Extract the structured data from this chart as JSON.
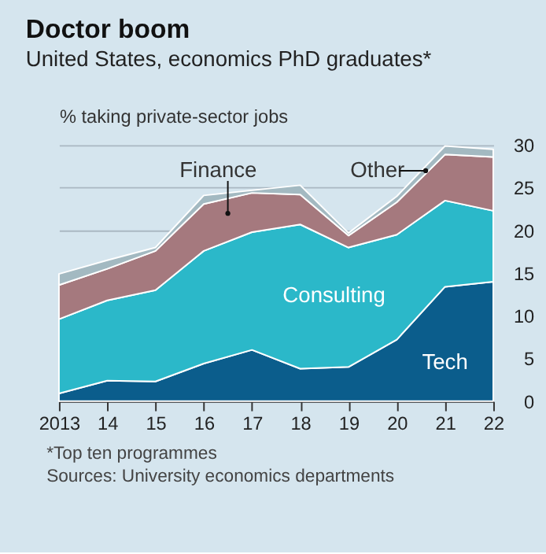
{
  "chart_data": {
    "type": "area",
    "stacked": true,
    "title": "Doctor boom",
    "subtitle": "United States, economics PhD graduates*",
    "ylabel": "% taking private-sector jobs",
    "x": [
      2013,
      2014,
      2015,
      2016,
      2017,
      2018,
      2019,
      2020,
      2021,
      2022
    ],
    "series": [
      {
        "name": "Tech",
        "color": "#0b5d8c",
        "values": [
          0.9,
          2.4,
          2.3,
          4.4,
          6.0,
          3.8,
          4.0,
          7.2,
          13.4,
          14.0
        ]
      },
      {
        "name": "Consulting",
        "color": "#2bb8c9",
        "values": [
          8.7,
          9.4,
          10.7,
          13.2,
          13.8,
          16.9,
          14.0,
          12.3,
          10.1,
          8.3
        ]
      },
      {
        "name": "Finance",
        "color": "#a5797e",
        "values": [
          4.0,
          3.7,
          4.6,
          5.5,
          4.6,
          3.5,
          1.4,
          3.8,
          5.4,
          6.3
        ]
      },
      {
        "name": "Other",
        "color": "#a3b9c1",
        "values": [
          1.3,
          1.0,
          0.4,
          1.0,
          0.3,
          1.1,
          0.3,
          0.7,
          1.0,
          0.9
        ]
      }
    ],
    "xlim": [
      2013,
      2022
    ],
    "xticks": [
      2013,
      {
        "value": 2014,
        "label": "14"
      },
      {
        "value": 2015,
        "label": "15"
      },
      {
        "value": 2016,
        "label": "16"
      },
      {
        "value": 2017,
        "label": "17"
      },
      {
        "value": 2018,
        "label": "18"
      },
      {
        "value": 2019,
        "label": "19"
      },
      {
        "value": 2020,
        "label": "20"
      },
      {
        "value": 2021,
        "label": "21"
      },
      {
        "value": 2022,
        "label": "22"
      }
    ],
    "ylim": [
      0,
      30
    ],
    "yticks": [
      0,
      5,
      10,
      15,
      20,
      25,
      30
    ],
    "grid": "y",
    "annotations": [
      "*Top ten programmes",
      "Sources: University economics departments"
    ]
  }
}
